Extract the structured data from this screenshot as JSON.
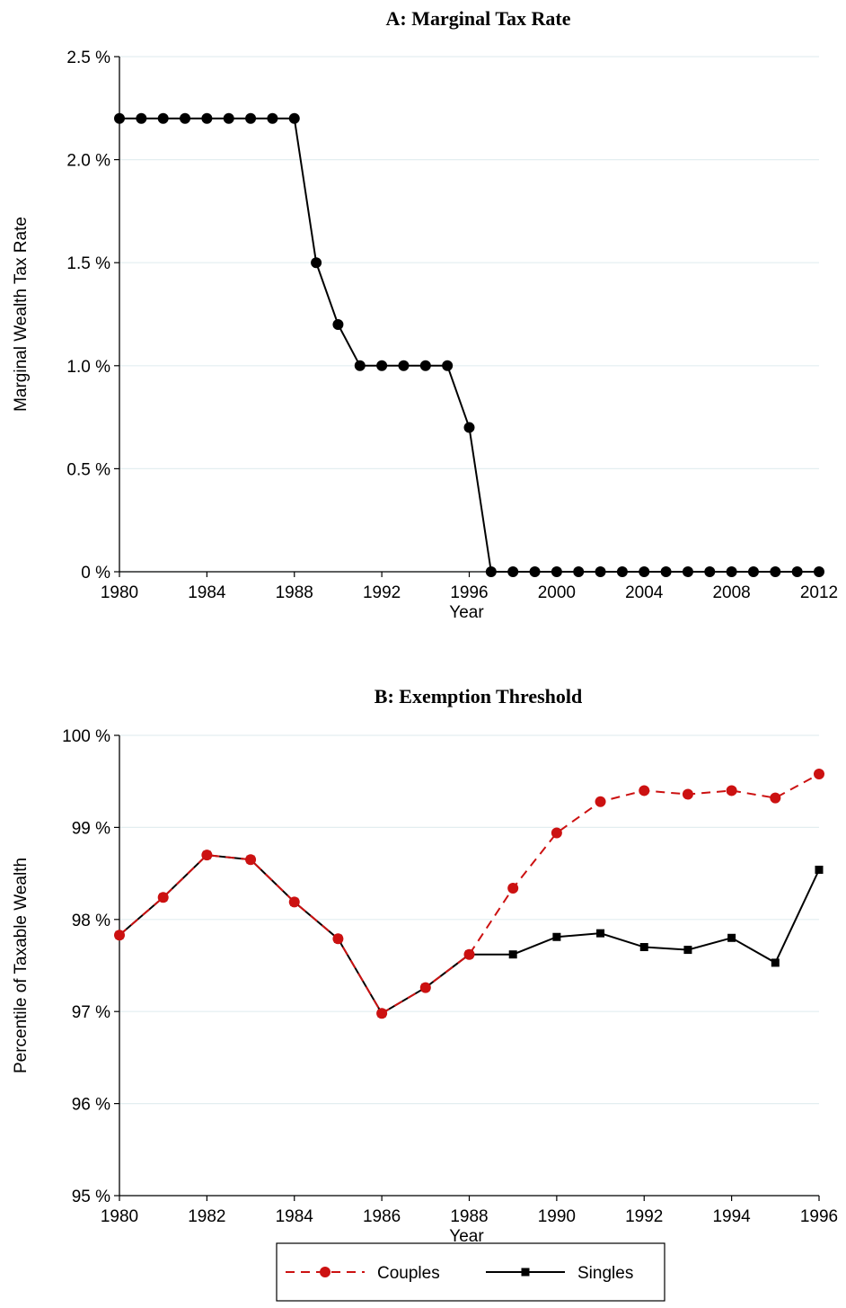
{
  "chart_data": [
    {
      "type": "line",
      "title": "A: Marginal Tax Rate",
      "xlabel": "Year",
      "ylabel": "Marginal Wealth Tax Rate",
      "x": [
        1980,
        1981,
        1982,
        1983,
        1984,
        1985,
        1986,
        1987,
        1988,
        1989,
        1990,
        1991,
        1992,
        1993,
        1994,
        1995,
        1996,
        1997,
        1998,
        1999,
        2000,
        2001,
        2002,
        2003,
        2004,
        2005,
        2006,
        2007,
        2008,
        2009,
        2010,
        2011,
        2012
      ],
      "values": [
        2.2,
        2.2,
        2.2,
        2.2,
        2.2,
        2.2,
        2.2,
        2.2,
        2.2,
        1.5,
        1.2,
        1.0,
        1.0,
        1.0,
        1.0,
        1.0,
        0.7,
        0,
        0,
        0,
        0,
        0,
        0,
        0,
        0,
        0,
        0,
        0,
        0,
        0,
        0,
        0,
        0
      ],
      "color": "#000000",
      "marker": "circle",
      "linestyle": "solid",
      "xlim": [
        1980,
        2012
      ],
      "xticks": [
        1980,
        1984,
        1988,
        1992,
        1996,
        2000,
        2004,
        2008,
        2012
      ],
      "ylim": [
        0,
        2.5
      ],
      "yticks": [
        {
          "value": 0,
          "label": "0 %"
        },
        {
          "value": 0.5,
          "label": "0.5 %"
        },
        {
          "value": 1.0,
          "label": "1.0 %"
        },
        {
          "value": 1.5,
          "label": "1.5 %"
        },
        {
          "value": 2.0,
          "label": "2.0 %"
        },
        {
          "value": 2.5,
          "label": "2.5 %"
        }
      ],
      "grid": true
    },
    {
      "type": "line",
      "title": "B: Exemption Threshold",
      "xlabel": "Year",
      "ylabel": "Percentile of Taxable Wealth",
      "x": [
        1980,
        1981,
        1982,
        1983,
        1984,
        1985,
        1986,
        1987,
        1988,
        1989,
        1990,
        1991,
        1992,
        1993,
        1994,
        1995,
        1996
      ],
      "series": [
        {
          "name": "Couples",
          "color": "#cc1111",
          "marker": "circle",
          "linestyle": "dashed",
          "values": [
            97.83,
            98.24,
            98.7,
            98.65,
            98.19,
            97.79,
            96.98,
            97.26,
            97.62,
            98.34,
            98.94,
            99.28,
            99.4,
            99.36,
            99.4,
            99.32,
            99.58
          ]
        },
        {
          "name": "Singles",
          "color": "#000000",
          "marker": "square",
          "linestyle": "solid",
          "values": [
            97.83,
            98.24,
            98.7,
            98.65,
            98.19,
            97.79,
            96.98,
            97.26,
            97.62,
            97.62,
            97.81,
            97.85,
            97.7,
            97.67,
            97.8,
            97.53,
            98.54
          ]
        }
      ],
      "xlim": [
        1980,
        1996
      ],
      "xticks": [
        1980,
        1982,
        1984,
        1986,
        1988,
        1990,
        1992,
        1994,
        1996
      ],
      "ylim": [
        95,
        100
      ],
      "yticks": [
        {
          "value": 95,
          "label": "95 %"
        },
        {
          "value": 96,
          "label": "96 %"
        },
        {
          "value": 97,
          "label": "97 %"
        },
        {
          "value": 98,
          "label": "98 %"
        },
        {
          "value": 99,
          "label": "99 %"
        },
        {
          "value": 100,
          "label": "100 %"
        }
      ],
      "grid": true,
      "legend": "bottom"
    }
  ]
}
